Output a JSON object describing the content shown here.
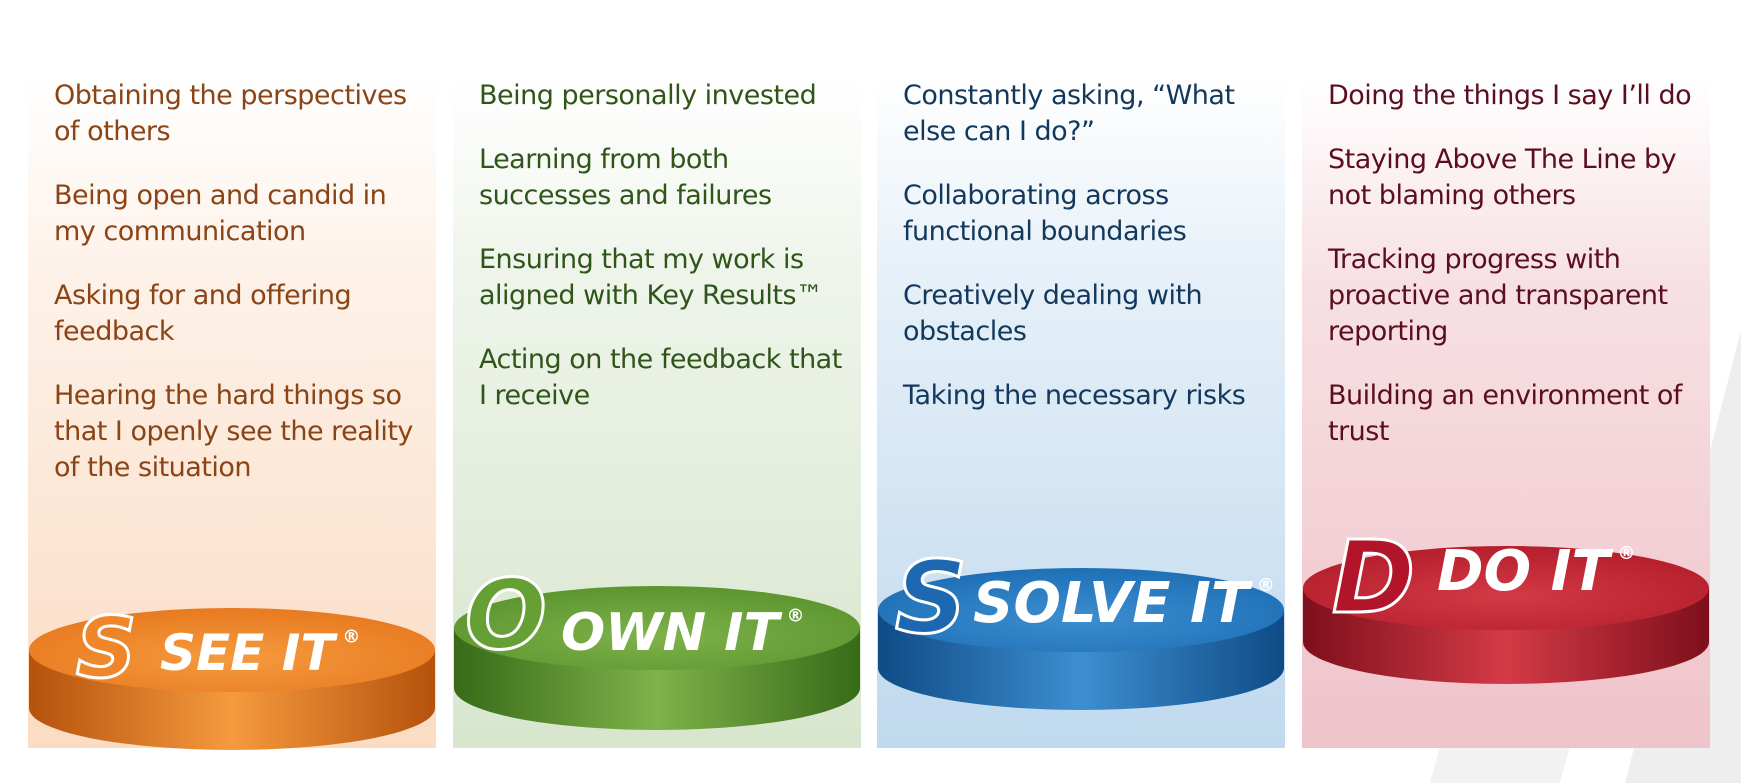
{
  "columns": [
    {
      "key": "see",
      "letter": "S",
      "label": "SEE IT",
      "reg": "®",
      "colors": {
        "base": "#e87a20",
        "dark": "#b5520c",
        "light": "#f59a3e",
        "letter": "#f0852a",
        "text": "#8a4415"
      },
      "items": [
        "Obtaining the perspectives of others",
        "Being open and candid in my communication",
        "Asking for and offering feedback",
        "Hearing the hard things so that I openly see the reality of the situation"
      ]
    },
    {
      "key": "own",
      "letter": "O",
      "label": "OWN IT",
      "reg": "®",
      "colors": {
        "base": "#5c952f",
        "dark": "#386a18",
        "light": "#7fb24a",
        "letter": "#64a034",
        "text": "#2f5518"
      },
      "items": [
        "Being personally invested",
        "Learning from both successes and failures",
        "Ensuring that my work is aligned with Key Results™",
        "Acting on the feedback that I receive"
      ]
    },
    {
      "key": "solve",
      "letter": "S",
      "label": "SOLVE IT",
      "reg": "®",
      "colors": {
        "base": "#1e6fb5",
        "dark": "#0f4b86",
        "light": "#3d8ed0",
        "letter": "#1d68b0",
        "text": "#12385d"
      },
      "items": [
        "Constantly asking, “What else can I do?”",
        "Collaborating across functional boundaries",
        "Creatively dealing with obstacles",
        "Taking the necessary risks"
      ]
    },
    {
      "key": "do",
      "letter": "D",
      "label": "DO IT",
      "reg": "®",
      "colors": {
        "base": "#b51e2c",
        "dark": "#7e0f1c",
        "light": "#d33a46",
        "letter": "#b2152a",
        "text": "#5b0e20"
      },
      "items": [
        "Doing the things I say I’ll do",
        "Staying Above The Line by not blaming others",
        "Tracking progress with proactive and transparent reporting",
        "Building an environment of trust"
      ]
    }
  ]
}
